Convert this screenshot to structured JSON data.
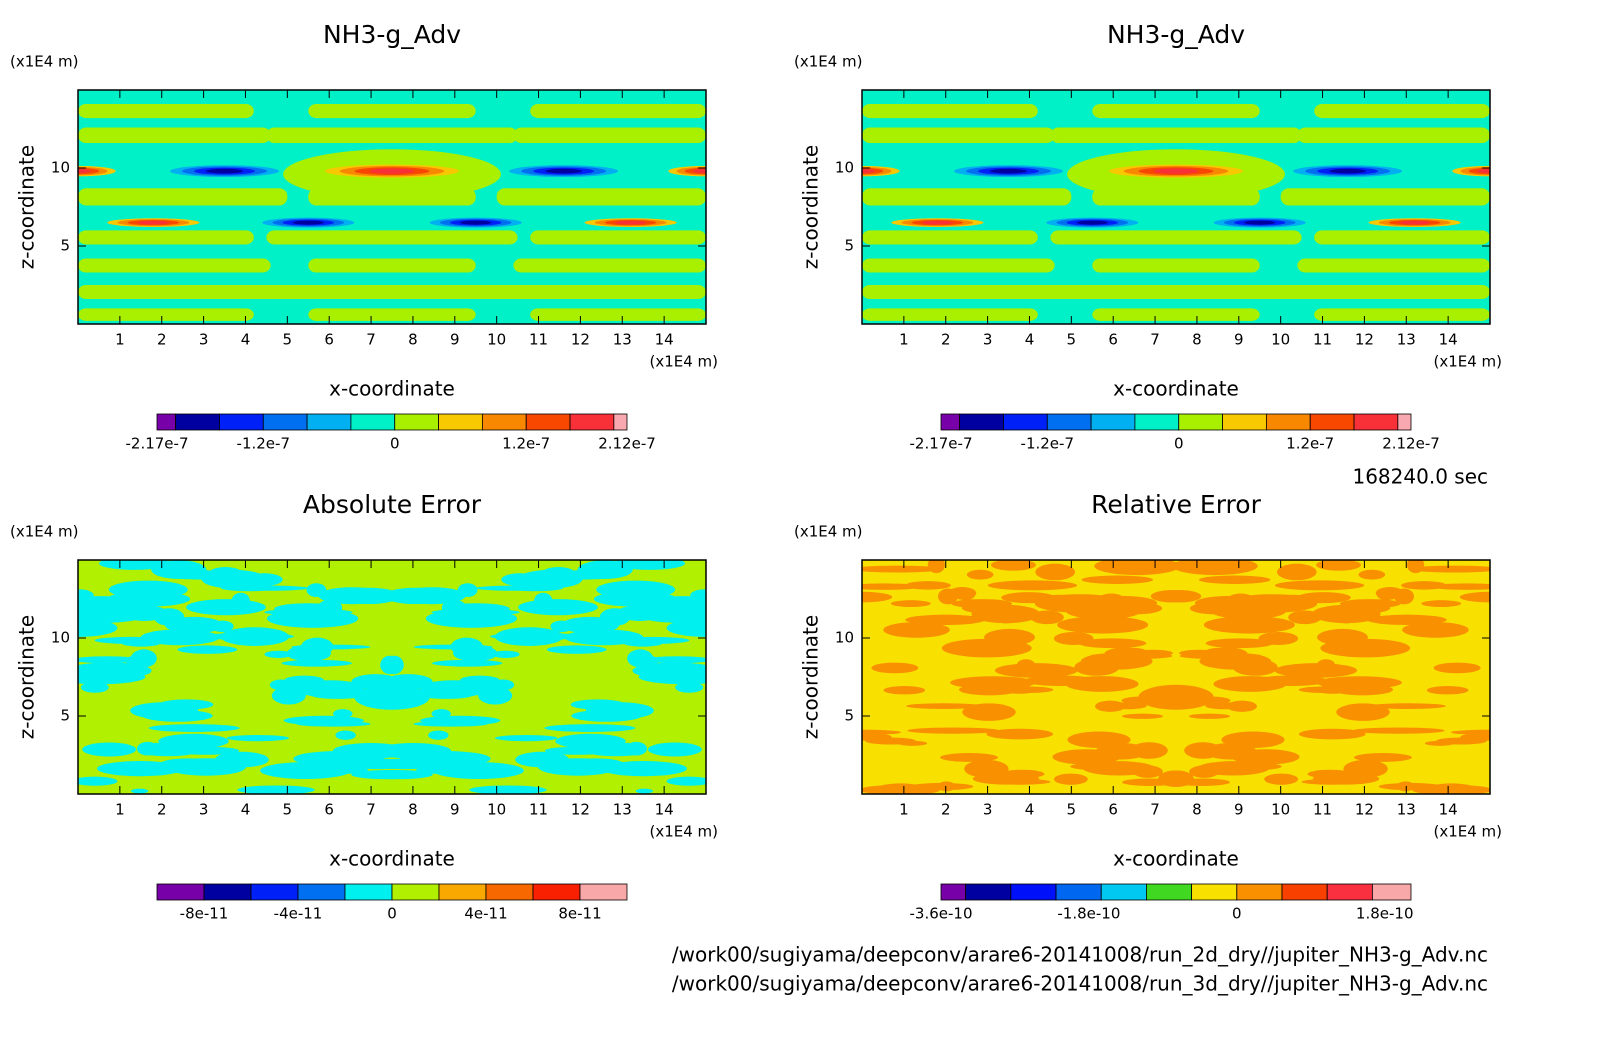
{
  "chart_data": [
    {
      "type": "contour",
      "title": "NH3-g_Adv",
      "xlabel": "x-coordinate",
      "ylabel": "z-coordinate",
      "xunit": "(x1E4 m)",
      "yunit": "(x1E4 m)",
      "xlim": [
        0,
        15
      ],
      "ylim": [
        0,
        15
      ],
      "xticks": [
        1,
        2,
        3,
        4,
        5,
        6,
        7,
        8,
        9,
        10,
        11,
        12,
        13,
        14
      ],
      "yticks": [
        5,
        10
      ],
      "levels": [
        -2.17e-07,
        -2e-07,
        -1.6e-07,
        -1.2e-07,
        -8e-08,
        -4e-08,
        0,
        4e-08,
        8e-08,
        1.2e-07,
        1.6e-07,
        2e-07,
        2.12e-07
      ],
      "colors": [
        "#7800a8",
        "#0000a0",
        "#0020f8",
        "#0070f0",
        "#00b0f0",
        "#00f0c8",
        "#a8f000",
        "#f8c800",
        "#f88800",
        "#f84800",
        "#f83038",
        "#f8a8b0"
      ],
      "colorbar_ticks": [
        {
          "value": -2.17e-07,
          "label": "-2.17e-7"
        },
        {
          "value": -1.2e-07,
          "label": "-1.2e-7"
        },
        0,
        {
          "value": 1.2e-07,
          "label": "1.2e-7"
        },
        {
          "value": 2.12e-07,
          "label": "2.12e-7"
        }
      ]
    },
    {
      "type": "contour",
      "title": "NH3-g_Adv",
      "xlabel": "x-coordinate",
      "ylabel": "z-coordinate",
      "xunit": "(x1E4 m)",
      "yunit": "(x1E4 m)",
      "xlim": [
        0,
        15
      ],
      "ylim": [
        0,
        15
      ],
      "xticks": [
        1,
        2,
        3,
        4,
        5,
        6,
        7,
        8,
        9,
        10,
        11,
        12,
        13,
        14
      ],
      "yticks": [
        5,
        10
      ],
      "levels": [
        -2.17e-07,
        -2e-07,
        -1.6e-07,
        -1.2e-07,
        -8e-08,
        -4e-08,
        0,
        4e-08,
        8e-08,
        1.2e-07,
        1.6e-07,
        2e-07,
        2.12e-07
      ],
      "colors": [
        "#7800a8",
        "#0000a0",
        "#0020f8",
        "#0070f0",
        "#00b0f0",
        "#00f0c8",
        "#a8f000",
        "#f8c800",
        "#f88800",
        "#f84800",
        "#f83038",
        "#f8a8b0"
      ],
      "colorbar_ticks": [
        {
          "value": -2.17e-07,
          "label": "-2.17e-7"
        },
        {
          "value": -1.2e-07,
          "label": "-1.2e-7"
        },
        0,
        {
          "value": 1.2e-07,
          "label": "1.2e-7"
        },
        {
          "value": 2.12e-07,
          "label": "2.12e-7"
        }
      ]
    },
    {
      "type": "contour",
      "title": "Absolute Error",
      "xlabel": "x-coordinate",
      "ylabel": "z-coordinate",
      "xunit": "(x1E4 m)",
      "yunit": "(x1E4 m)",
      "xlim": [
        0,
        15
      ],
      "ylim": [
        0,
        15
      ],
      "xticks": [
        1,
        2,
        3,
        4,
        5,
        6,
        7,
        8,
        9,
        10,
        11,
        12,
        13,
        14
      ],
      "yticks": [
        5,
        10
      ],
      "levels": [
        -1e-10,
        -8e-11,
        -6e-11,
        -4e-11,
        -2e-11,
        0,
        2e-11,
        4e-11,
        6e-11,
        8e-11,
        1e-10
      ],
      "colors": [
        "#7800a8",
        "#0000a0",
        "#0020f8",
        "#0070f0",
        "#00f0f0",
        "#b0f000",
        "#f8a800",
        "#f86800",
        "#f82000",
        "#f8a8a8"
      ],
      "colorbar_ticks": [
        {
          "value": -8e-11,
          "label": "-8e-11"
        },
        {
          "value": -4e-11,
          "label": "-4e-11"
        },
        0,
        {
          "value": 4e-11,
          "label": "4e-11"
        },
        {
          "value": 8e-11,
          "label": "8e-11"
        }
      ]
    },
    {
      "type": "contour",
      "title": "Relative Error",
      "xlabel": "x-coordinate",
      "ylabel": "z-coordinate",
      "xunit": "(x1E4 m)",
      "yunit": "(x1E4 m)",
      "xlim": [
        0,
        15
      ],
      "ylim": [
        0,
        15
      ],
      "xticks": [
        1,
        2,
        3,
        4,
        5,
        6,
        7,
        8,
        9,
        10,
        11,
        12,
        13,
        14
      ],
      "yticks": [
        5,
        10
      ],
      "levels": [
        -3.6e-10,
        -3.3e-10,
        -2.75e-10,
        -2.2e-10,
        -1.65e-10,
        -1.1e-10,
        -5.5e-11,
        0,
        5.5e-11,
        1.1e-10,
        1.65e-10,
        2.12e-10
      ],
      "colors": [
        "#7800a8",
        "#0000a0",
        "#0010f8",
        "#0068f0",
        "#00c8f0",
        "#40d820",
        "#f8e000",
        "#f89000",
        "#f84000",
        "#f83040",
        "#f8a8a8"
      ],
      "colorbar_ticks": [
        {
          "value": -3.6e-10,
          "label": "-3.6e-10"
        },
        {
          "value": -1.8e-10,
          "label": "-1.8e-10"
        },
        0,
        {
          "value": 1.8e-10,
          "label": "1.8e-10"
        }
      ]
    }
  ],
  "footer": {
    "time": "168240.0 sec",
    "files": [
      "/work00/sugiyama/deepconv/arare6-20141008/run_2d_dry//jupiter_NH3-g_Adv.nc",
      "/work00/sugiyama/deepconv/arare6-20141008/run_3d_dry//jupiter_NH3-g_Adv.nc"
    ]
  }
}
